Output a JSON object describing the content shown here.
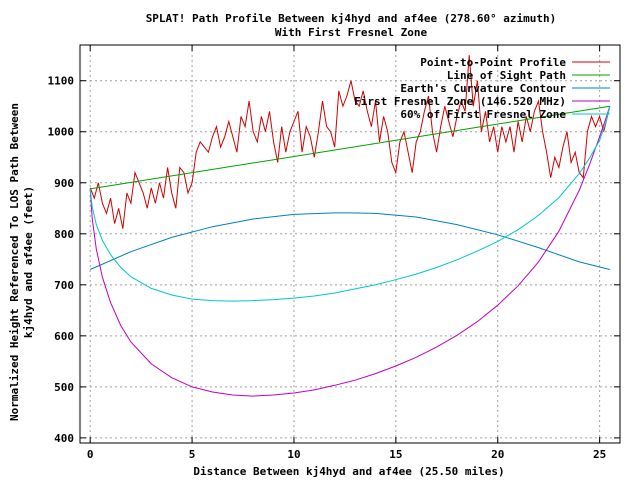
{
  "chart_data": {
    "type": "line",
    "title": "SPLAT! Path Profile Between kj4hyd and af4ee (278.60° azimuth)",
    "subtitle": "With First Fresnel Zone",
    "xlabel": "Distance Between kj4hyd and af4ee (25.50 miles)",
    "ylabel_line1": "Normalized Height Referenced To LOS Path Between",
    "ylabel_line2": "kj4hyd and af4ee (feet)",
    "xlim": [
      -0.5,
      26
    ],
    "ylim": [
      390,
      1170
    ],
    "xticks": [
      0,
      5,
      10,
      15,
      20,
      25
    ],
    "yticks": [
      400,
      500,
      600,
      700,
      800,
      900,
      1000,
      1100
    ],
    "grid": true,
    "legend_position": "top-right",
    "series": [
      {
        "name": "Point-to-Point Profile",
        "color": "#d00000",
        "x": [
          0,
          0.2,
          0.4,
          0.6,
          0.8,
          1.0,
          1.2,
          1.4,
          1.6,
          1.8,
          2.0,
          2.2,
          2.4,
          2.6,
          2.8,
          3.0,
          3.2,
          3.4,
          3.6,
          3.8,
          4.0,
          4.2,
          4.4,
          4.6,
          4.8,
          5.0,
          5.2,
          5.4,
          5.6,
          5.8,
          6.0,
          6.2,
          6.4,
          6.6,
          6.8,
          7.0,
          7.2,
          7.4,
          7.6,
          7.8,
          8.0,
          8.2,
          8.4,
          8.6,
          8.8,
          9.0,
          9.2,
          9.4,
          9.6,
          9.8,
          10.0,
          10.2,
          10.4,
          10.6,
          10.8,
          11.0,
          11.2,
          11.4,
          11.6,
          11.8,
          12.0,
          12.2,
          12.4,
          12.6,
          12.8,
          13.0,
          13.2,
          13.4,
          13.6,
          13.8,
          14.0,
          14.2,
          14.4,
          14.6,
          14.8,
          15.0,
          15.2,
          15.4,
          15.6,
          15.8,
          16.0,
          16.2,
          16.4,
          16.6,
          16.8,
          17.0,
          17.2,
          17.4,
          17.6,
          17.8,
          18.0,
          18.2,
          18.4,
          18.6,
          18.8,
          19.0,
          19.2,
          19.4,
          19.6,
          19.8,
          20.0,
          20.2,
          20.4,
          20.6,
          20.8,
          21.0,
          21.2,
          21.4,
          21.6,
          21.8,
          22.0,
          22.2,
          22.4,
          22.6,
          22.8,
          23.0,
          23.2,
          23.4,
          23.6,
          23.8,
          24.0,
          24.2,
          24.4,
          24.6,
          24.8,
          25.0,
          25.2,
          25.5
        ],
        "values": [
          890,
          870,
          900,
          860,
          840,
          870,
          820,
          850,
          810,
          880,
          860,
          920,
          900,
          880,
          850,
          890,
          860,
          900,
          870,
          930,
          880,
          850,
          930,
          920,
          880,
          900,
          960,
          980,
          970,
          960,
          990,
          1010,
          970,
          990,
          1020,
          990,
          960,
          1030,
          1010,
          1060,
          1000,
          980,
          1030,
          1000,
          1040,
          980,
          940,
          1010,
          960,
          1000,
          1020,
          1040,
          960,
          1010,
          990,
          950,
          1000,
          1060,
          1010,
          1000,
          970,
          1080,
          1050,
          1070,
          1100,
          1060,
          1050,
          1080,
          1040,
          1010,
          1060,
          980,
          1030,
          1000,
          940,
          920,
          980,
          1000,
          960,
          920,
          980,
          1000,
          1040,
          1070,
          1000,
          960,
          1010,
          1050,
          1020,
          990,
          1030,
          1060,
          1040,
          1150,
          1050,
          1100,
          1000,
          1040,
          980,
          1010,
          960,
          1010,
          980,
          1010,
          960,
          1020,
          980,
          1030,
          1000,
          1040,
          1060,
          1000,
          960,
          910,
          950,
          930,
          970,
          1000,
          940,
          960,
          920,
          910,
          1000,
          1030,
          1010,
          1030,
          1000,
          1050
        ]
      },
      {
        "name": "Line of Sight Path",
        "color": "#00a000",
        "x": [
          0,
          25.5
        ],
        "values": [
          888,
          1050
        ]
      },
      {
        "name": "Earth's Curvature Contour",
        "color": "#0080c0",
        "x": [
          0,
          2,
          4,
          6,
          8,
          10,
          12,
          12.75,
          14,
          16,
          18,
          20,
          22,
          24,
          25.5
        ],
        "values": [
          730,
          765,
          793,
          814,
          829,
          838,
          841,
          841,
          840,
          833,
          818,
          798,
          773,
          745,
          730
        ]
      },
      {
        "name": "First Fresnel Zone (146.520 MHz)",
        "color": "#c000c0",
        "x": [
          0,
          0.1,
          0.3,
          0.6,
          1,
          1.5,
          2,
          3,
          4,
          5,
          6,
          7,
          8,
          9,
          10,
          11,
          12,
          13,
          14,
          15,
          16,
          17,
          18,
          19,
          20,
          21,
          22,
          23,
          24,
          24.5,
          25,
          25.3,
          25.5
        ],
        "values": [
          888,
          830,
          770,
          715,
          665,
          620,
          588,
          545,
          518,
          500,
          490,
          484,
          482,
          484,
          488,
          494,
          503,
          513,
          526,
          541,
          558,
          578,
          601,
          628,
          660,
          698,
          745,
          805,
          885,
          935,
          990,
          1025,
          1050
        ]
      },
      {
        "name": "60% of First Fresnel Zone",
        "color": "#00c8c8",
        "x": [
          0,
          0.1,
          0.3,
          0.6,
          1,
          1.5,
          2,
          3,
          4,
          5,
          6,
          7,
          8,
          9,
          10,
          11,
          12,
          13,
          14,
          15,
          16,
          17,
          18,
          19,
          20,
          21,
          22,
          23,
          24,
          24.5,
          25,
          25.3,
          25.5
        ],
        "values": [
          888,
          853,
          818,
          787,
          759,
          734,
          716,
          693,
          680,
          672,
          669,
          668,
          669,
          671,
          674,
          678,
          684,
          692,
          700,
          710,
          721,
          734,
          749,
          766,
          785,
          808,
          836,
          871,
          918,
          948,
          983,
          1018,
          1050
        ]
      }
    ]
  }
}
